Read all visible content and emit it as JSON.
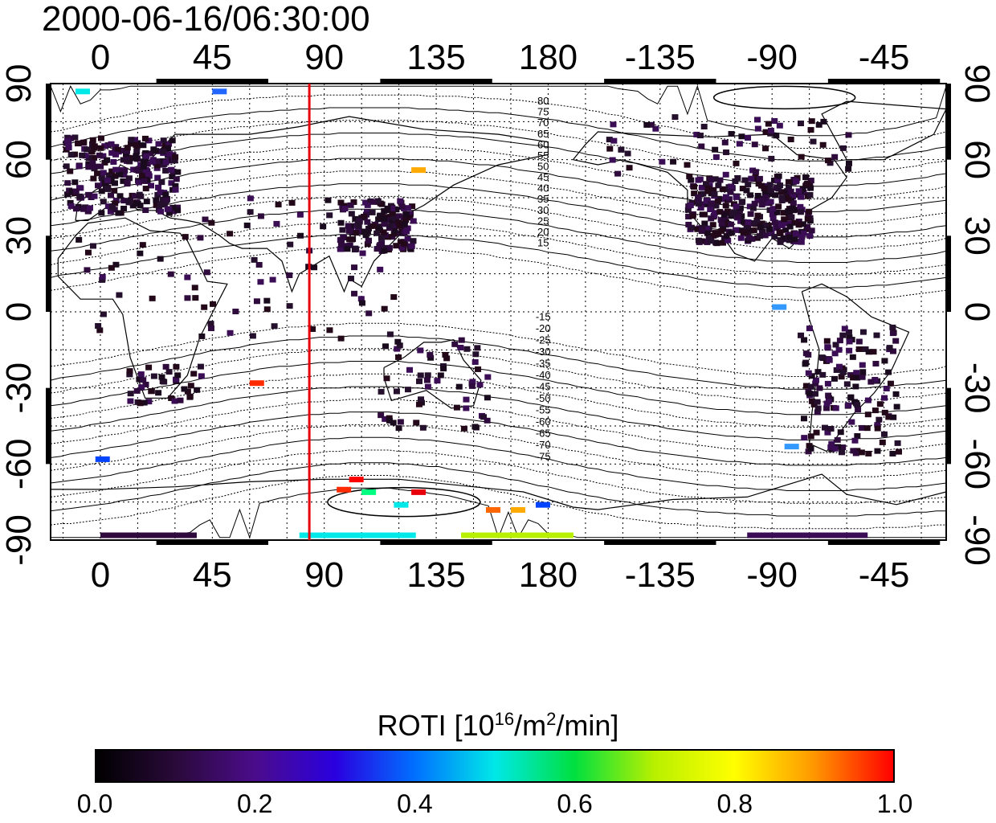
{
  "title": "2000-06-16/06:30:00",
  "map": {
    "lon_ticks_top": [
      "0",
      "45",
      "90",
      "135",
      "180",
      "-135",
      "-90",
      "-45"
    ],
    "lon_ticks_bottom": [
      "0",
      "45",
      "90",
      "135",
      "180",
      "-135",
      "-90",
      "-45"
    ],
    "lat_ticks_left": [
      "90",
      "60",
      "30",
      "0",
      "-30",
      "-60",
      "-90"
    ],
    "lat_ticks_right": [
      "90",
      "60",
      "30",
      "0",
      "-30",
      "-60",
      "-90"
    ],
    "lon_values": [
      0,
      45,
      90,
      135,
      180,
      225,
      270,
      315
    ],
    "lat_values": [
      90,
      60,
      30,
      0,
      -30,
      -60,
      -90
    ],
    "lon_range": [
      -20,
      340
    ],
    "lat_range": [
      -90,
      90
    ],
    "grid": true,
    "marker_line_lon": 84,
    "marker_line_color": "#e8000b",
    "contour_labels_north": [
      "80",
      "75",
      "70",
      "65",
      "60",
      "55",
      "50",
      "45",
      "40",
      "35",
      "30",
      "25",
      "20",
      "15"
    ],
    "contour_labels_south": [
      "-15",
      "-20",
      "-25",
      "-30",
      "-35",
      "-40",
      "-45",
      "-50",
      "-55",
      "-60",
      "-65",
      "-70",
      "-75"
    ]
  },
  "colorbar": {
    "label_main": "ROTI  [10",
    "label_sup1": "16",
    "label_mid": "/m",
    "label_sup2": "2",
    "label_end": "/min]",
    "ticks": [
      "0.0",
      "0.2",
      "0.4",
      "0.6",
      "0.8",
      "1.0"
    ],
    "range": [
      0.0,
      1.0
    ],
    "colormap": [
      "#000000",
      "#2a0a3a",
      "#4b0c8c",
      "#2a00e0",
      "#0070ff",
      "#00e8e8",
      "#00e040",
      "#b8f000",
      "#ffff00",
      "#ff9800",
      "#ff0000"
    ]
  }
}
